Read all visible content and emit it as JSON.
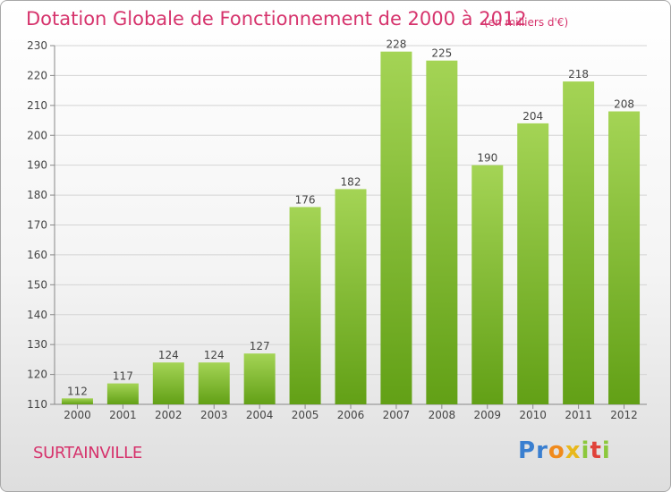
{
  "header": {
    "title": "Dotation Globale de Fonctionnement de 2000 à 2012",
    "subtitle": "(en milliers d'€)"
  },
  "footer": {
    "commune": "SURTAINVILLE",
    "logo": "Proxiti"
  },
  "colors": {
    "text_accent": "#d6336c",
    "bar_top": "#a4d455",
    "bar_bottom": "#62a016",
    "logo_p": "#3a7fd0",
    "logo_r": "#3a7fd0",
    "logo_o": "#f08a1c",
    "logo_x": "#e8b81c",
    "logo_i": "#8cc83c",
    "logo_t": "#e0423a"
  },
  "chart_data": {
    "type": "bar",
    "categories": [
      "2000",
      "2001",
      "2002",
      "2003",
      "2004",
      "2005",
      "2006",
      "2007",
      "2008",
      "2009",
      "2010",
      "2011",
      "2012"
    ],
    "values": [
      112,
      117,
      124,
      124,
      127,
      176,
      182,
      228,
      225,
      190,
      204,
      218,
      208
    ],
    "title": "Dotation Globale de Fonctionnement de 2000 à 2012",
    "subtitle": "(en milliers d'€)",
    "xlabel": "",
    "ylabel": "",
    "ylim": [
      110,
      230
    ],
    "yticks": [
      110,
      120,
      130,
      140,
      150,
      160,
      170,
      180,
      190,
      200,
      210,
      220,
      230
    ],
    "grid": true,
    "data_labels": true
  }
}
